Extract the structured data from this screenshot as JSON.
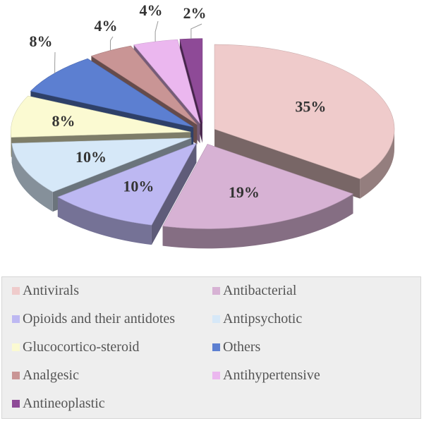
{
  "chart_data": {
    "type": "pie",
    "style": "3d-exploded",
    "title": "",
    "slices": [
      {
        "label": "Antivirals",
        "value": 35,
        "display": "35%",
        "color": "#EFCBCB"
      },
      {
        "label": "Antibacterial",
        "value": 19,
        "display": "19%",
        "color": "#D7B2D4"
      },
      {
        "label": "Opioids and their antidotes",
        "value": 10,
        "display": "10%",
        "color": "#BDB8F2"
      },
      {
        "label": "Antipsychotic",
        "value": 10,
        "display": "10%",
        "color": "#D6E8F8"
      },
      {
        "label": "Glucocortico-steroid",
        "value": 8,
        "display": "8%",
        "color": "#FBFAD2"
      },
      {
        "label": "Others",
        "value": 8,
        "display": "8%",
        "color": "#5C7FD1"
      },
      {
        "label": "Analgesic",
        "value": 4,
        "display": "4%",
        "color": "#C99595"
      },
      {
        "label": "Antihypertensive",
        "value": 4,
        "display": "4%",
        "color": "#EBB7EF"
      },
      {
        "label": "Antineoplastic",
        "value": 2,
        "display": "2%",
        "color": "#8E4A97"
      }
    ],
    "legend": {
      "position": "bottom",
      "columns": 2,
      "items": [
        "Antivirals",
        "Antibacterial",
        "Opioids and their antidotes",
        "Antipsychotic",
        "Glucocortico-steroid",
        "Others",
        "Analgesic",
        "Antihypertensive",
        "Antineoplastic"
      ]
    }
  }
}
